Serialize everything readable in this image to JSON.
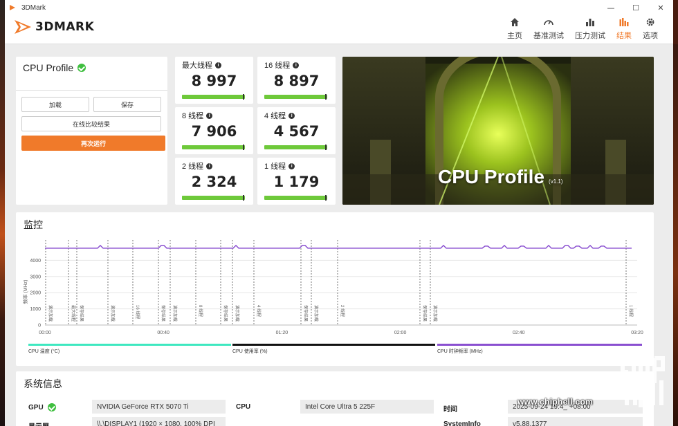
{
  "window": {
    "title": "3DMark",
    "controls": [
      "—",
      "☐",
      "✕"
    ]
  },
  "header": {
    "logo_text": "3DMARK",
    "nav": [
      {
        "label": "主页",
        "icon": "home-icon"
      },
      {
        "label": "基准测试",
        "icon": "gauge-icon"
      },
      {
        "label": "压力测试",
        "icon": "bar-chart-icon"
      },
      {
        "label": "结果",
        "icon": "results-icon",
        "active": true
      },
      {
        "label": "选项",
        "icon": "gear-icon"
      }
    ]
  },
  "summary": {
    "title": "CPU Profile",
    "load_label": "加载",
    "save_label": "保存",
    "compare_label": "在线比较结果",
    "run_again_label": "再次运行"
  },
  "scores": [
    {
      "label": "最大线程",
      "value": "8 997"
    },
    {
      "label": "16 线程",
      "value": "8 897"
    },
    {
      "label": "8 线程",
      "value": "7 906"
    },
    {
      "label": "4 线程",
      "value": "4 567"
    },
    {
      "label": "2 线程",
      "value": "2 324"
    },
    {
      "label": "1 线程",
      "value": "1 179"
    }
  ],
  "hero": {
    "title": "CPU Profile",
    "version": "(v1.1)"
  },
  "monitor": {
    "title": "监控",
    "y_label": "频率 (MHz)",
    "y_ticks": [
      "0",
      "1000",
      "2000",
      "3000",
      "4000"
    ],
    "x_ticks": [
      "00:00",
      "00:40",
      "01:20",
      "02:00",
      "02:40",
      "03:20"
    ],
    "markers": [
      "演示加载",
      "最大线程",
      "保存结果",
      "演示加载",
      "16 线程",
      "保存结果",
      "演示加载",
      "8 线程",
      "保存结果",
      "演示加载",
      "4 线程",
      "保存结果",
      "演示加载",
      "2 线程",
      "保存结果",
      "演示加载",
      "1 线程",
      "保存结果"
    ],
    "legend": [
      {
        "label": "CPU 温度 (°C)",
        "color": "#3ee8c0"
      },
      {
        "label": "CPU 使用率 (%)",
        "color": "#111111"
      },
      {
        "label": "CPU 时钟频率 (MHz)",
        "color": "#8a4fd0"
      }
    ]
  },
  "sysinfo": {
    "title": "系统信息",
    "rows": [
      {
        "label": "GPU",
        "value": "NVIDIA GeForce RTX 5070 Ti",
        "check": true
      },
      {
        "label": "CPU",
        "value": "Intel Core Ultra 5 225F"
      },
      {
        "label": "时间",
        "value": "2025-09-24 19:4_ +08:00"
      }
    ],
    "row2": [
      {
        "label": "显示屏",
        "value": "\\\\.\\DISPLAY1 (1920 × 1080, 100% DPI"
      },
      {
        "label": "SystemInfo",
        "value": "v5.88.1377"
      }
    ]
  },
  "watermark": {
    "url": "www.chiphell.com"
  }
}
